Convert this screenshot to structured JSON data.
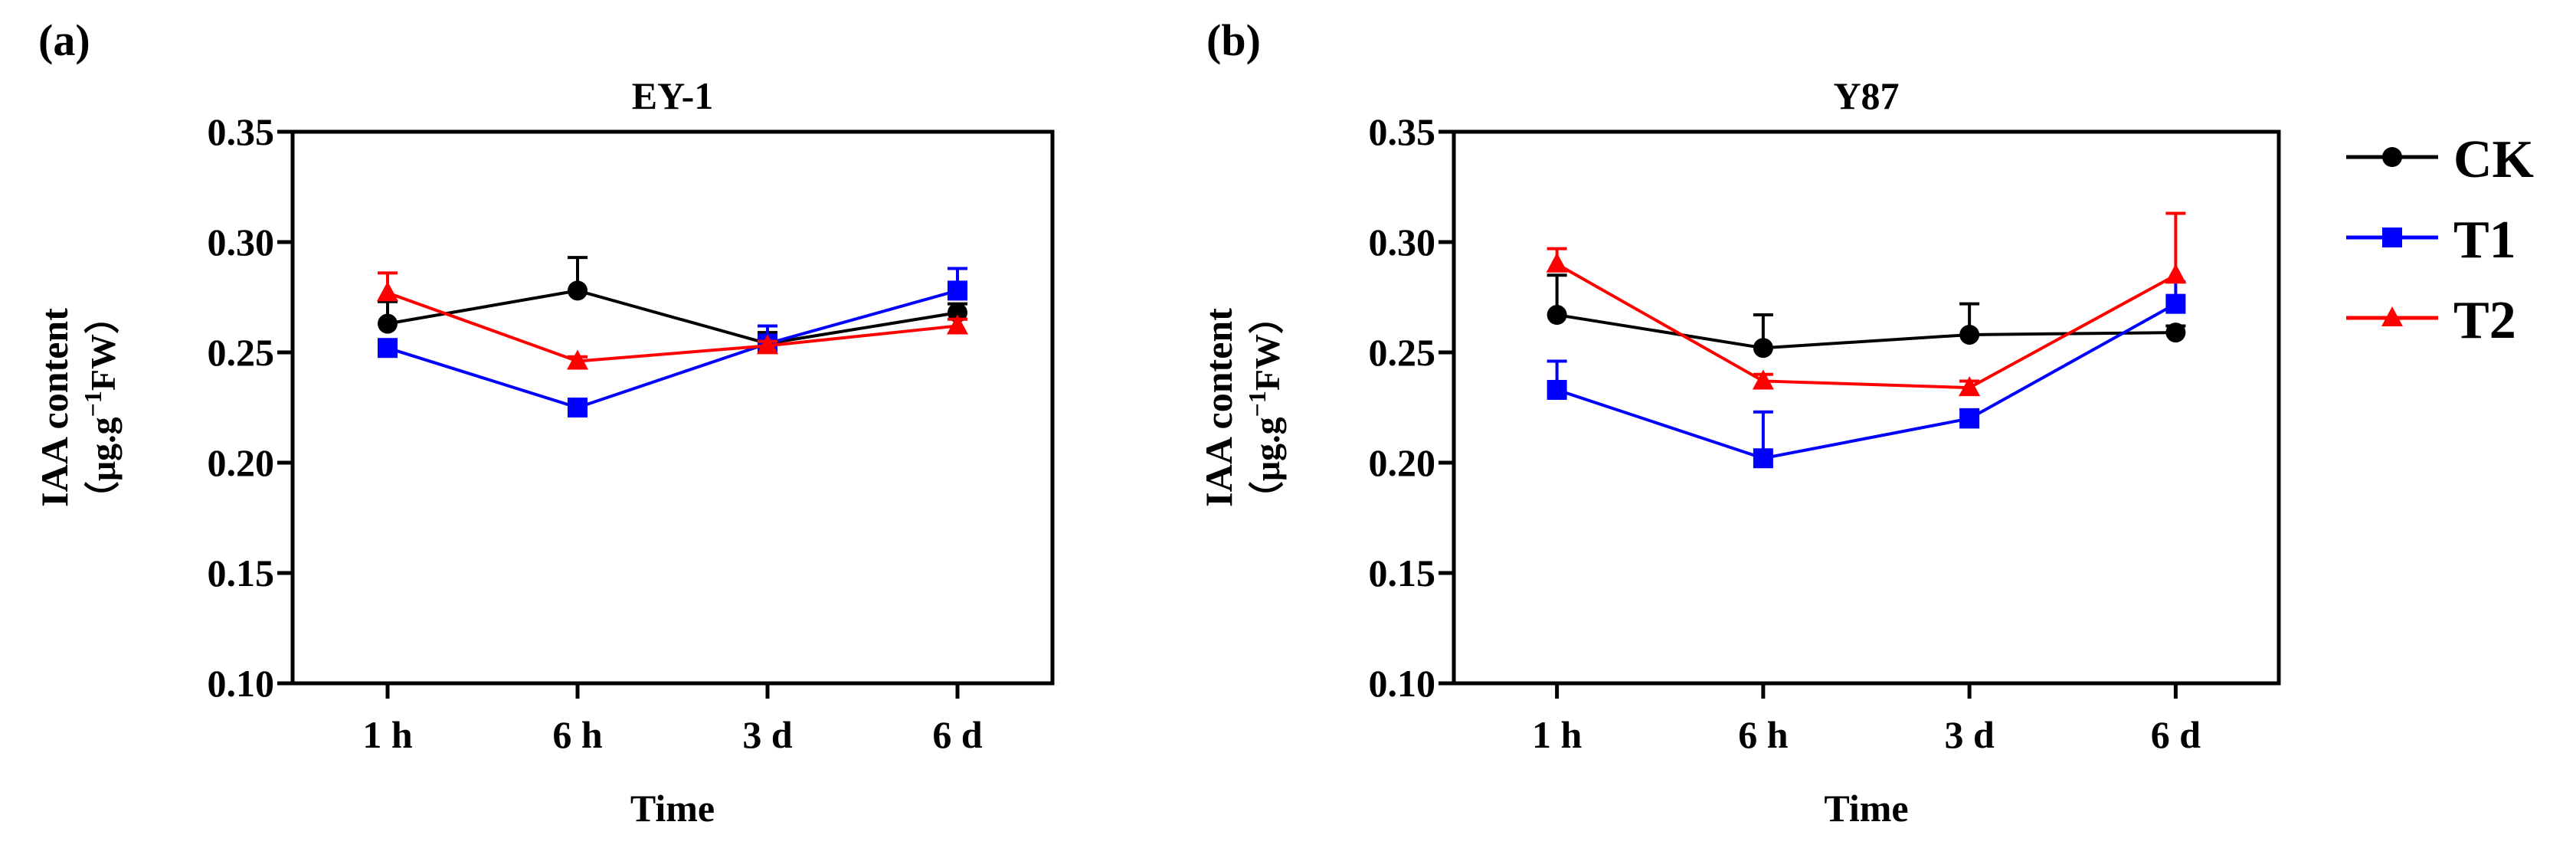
{
  "legend": {
    "entries": [
      {
        "name": "CK",
        "color": "#000000",
        "marker": "circle"
      },
      {
        "name": "T1",
        "color": "#0000ff",
        "marker": "square"
      },
      {
        "name": "T2",
        "color": "#ff0000",
        "marker": "triangle"
      }
    ]
  },
  "chart_data": [
    {
      "panel_label": "(a)",
      "type": "line",
      "title": "EY-1",
      "xlabel": "Time",
      "ylabel_line1": "IAA content",
      "ylabel_line2_open": "（μg.g",
      "ylabel_line2_sup": "−1",
      "ylabel_line2_close": "FW）",
      "categories": [
        "1 h",
        "6 h",
        "3 d",
        "6 d"
      ],
      "ylim": [
        0.1,
        0.35
      ],
      "yticks": [
        "0.10",
        "0.15",
        "0.20",
        "0.25",
        "0.30",
        "0.35"
      ],
      "series": [
        {
          "name": "CK",
          "values": [
            0.263,
            0.278,
            0.254,
            0.268
          ],
          "errors": [
            0.01,
            0.015,
            0.005,
            0.004
          ]
        },
        {
          "name": "T1",
          "values": [
            0.252,
            0.225,
            0.254,
            0.278
          ],
          "errors": [
            0.003,
            0.003,
            0.008,
            0.01
          ]
        },
        {
          "name": "T2",
          "values": [
            0.277,
            0.246,
            0.253,
            0.262
          ],
          "errors": [
            0.009,
            0.002,
            0.002,
            0.003
          ]
        }
      ]
    },
    {
      "panel_label": "(b)",
      "type": "line",
      "title": "Y87",
      "xlabel": "Time",
      "ylabel_line1": "IAA content",
      "ylabel_line2_open": "（μg.g",
      "ylabel_line2_sup": "−1",
      "ylabel_line2_close": "FW）",
      "categories": [
        "1 h",
        "6 h",
        "3 d",
        "6 d"
      ],
      "ylim": [
        0.1,
        0.35
      ],
      "yticks": [
        "0.10",
        "0.15",
        "0.20",
        "0.25",
        "0.30",
        "0.35"
      ],
      "series": [
        {
          "name": "CK",
          "values": [
            0.267,
            0.252,
            0.258,
            0.259
          ],
          "errors": [
            0.018,
            0.015,
            0.014,
            0.003
          ]
        },
        {
          "name": "T1",
          "values": [
            0.233,
            0.202,
            0.22,
            0.272
          ],
          "errors": [
            0.013,
            0.021,
            0.004,
            0.01
          ]
        },
        {
          "name": "T2",
          "values": [
            0.29,
            0.237,
            0.234,
            0.285
          ],
          "errors": [
            0.007,
            0.003,
            0.003,
            0.028
          ]
        }
      ]
    }
  ]
}
